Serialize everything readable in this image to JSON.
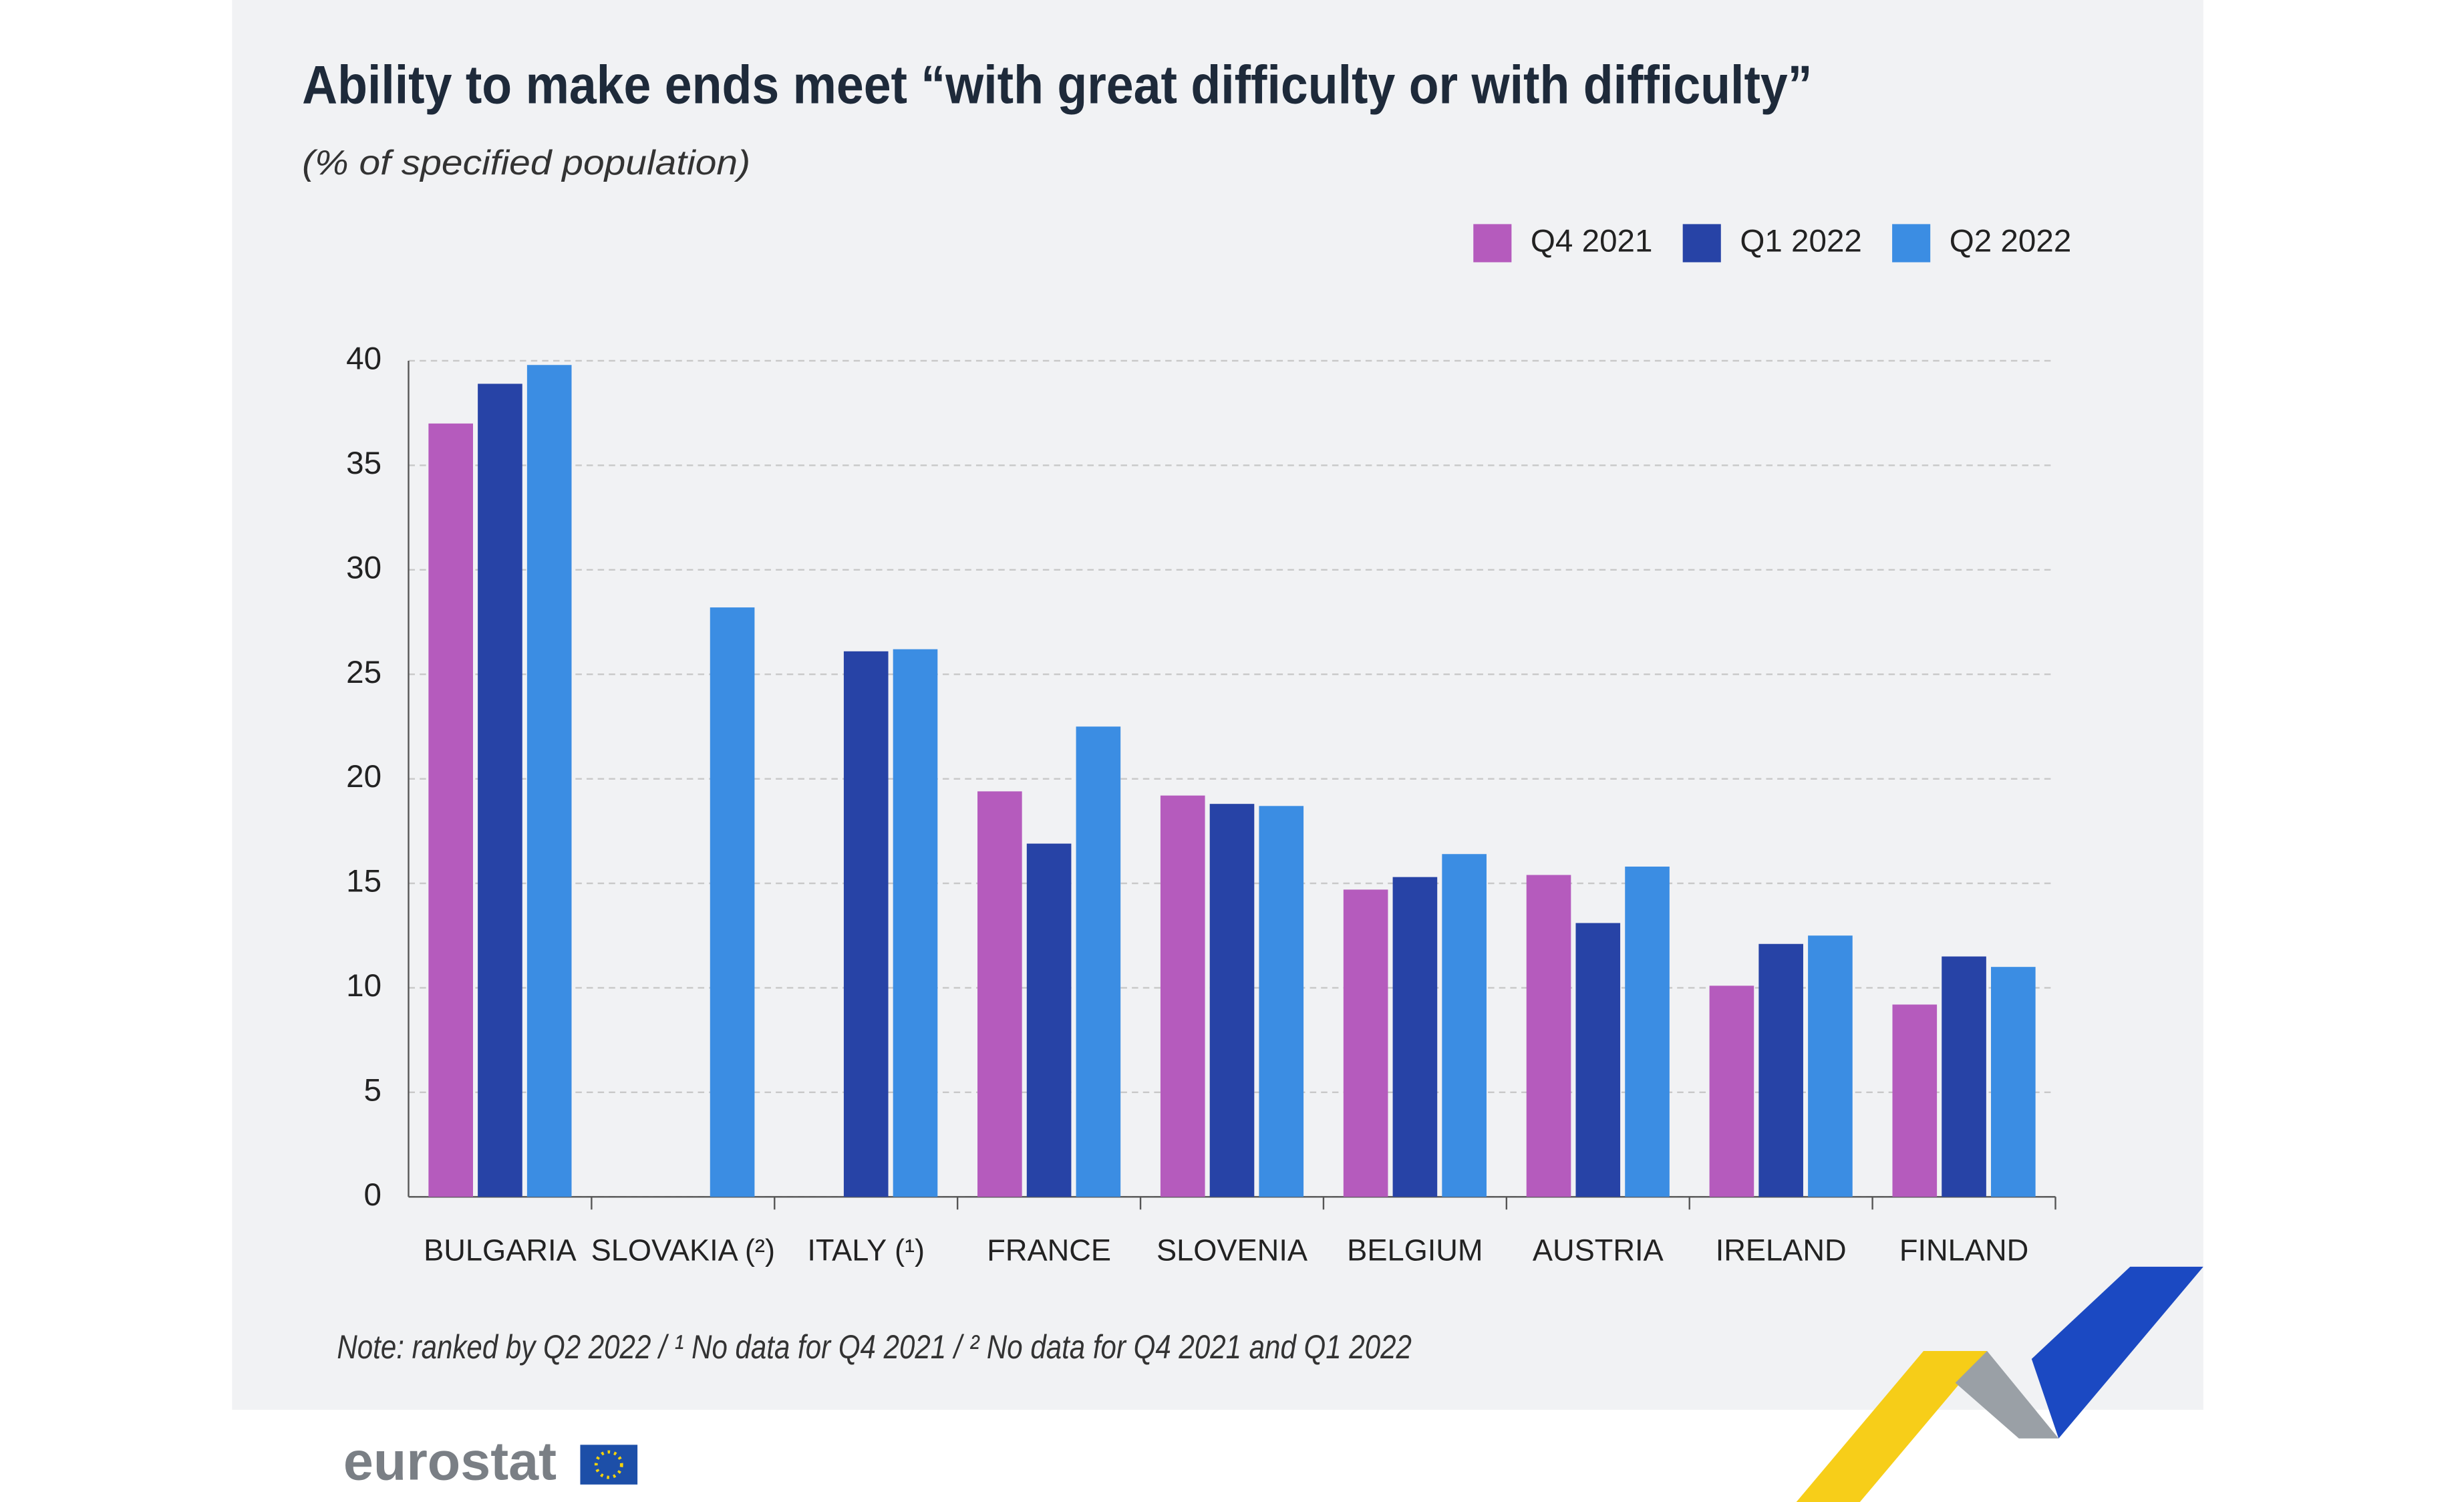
{
  "chart_data": {
    "type": "bar",
    "title": "Ability to make ends meet “with great difficulty or with difficulty”",
    "subtitle": "(% of specified population)",
    "categories": [
      "BULGARIA",
      "SLOVAKIA (²)",
      "ITALY (¹)",
      "FRANCE",
      "SLOVENIA",
      "BELGIUM",
      "AUSTRIA",
      "IRELAND",
      "FINLAND"
    ],
    "series": [
      {
        "name": "Q4 2021",
        "color": "#b55bbd",
        "values": [
          37.0,
          null,
          null,
          19.4,
          19.2,
          14.7,
          15.4,
          10.1,
          9.2
        ]
      },
      {
        "name": "Q1 2022",
        "color": "#2743a6",
        "values": [
          38.9,
          null,
          26.1,
          16.9,
          18.8,
          15.3,
          13.1,
          12.1,
          11.5
        ]
      },
      {
        "name": "Q2 2022",
        "color": "#3b8de3",
        "values": [
          39.8,
          28.2,
          26.2,
          22.5,
          18.7,
          16.4,
          15.8,
          12.5,
          11.0
        ]
      }
    ],
    "ylim": [
      0,
      40
    ],
    "yticks": [
      0,
      5,
      10,
      15,
      20,
      25,
      30,
      35,
      40
    ],
    "grid": true,
    "legend": "top-right",
    "note": "Note: ranked by Q2 2022 / ¹ No data for Q4 2021 / ² No data for Q4 2021 and Q1 2022",
    "logo": "eurostat"
  }
}
